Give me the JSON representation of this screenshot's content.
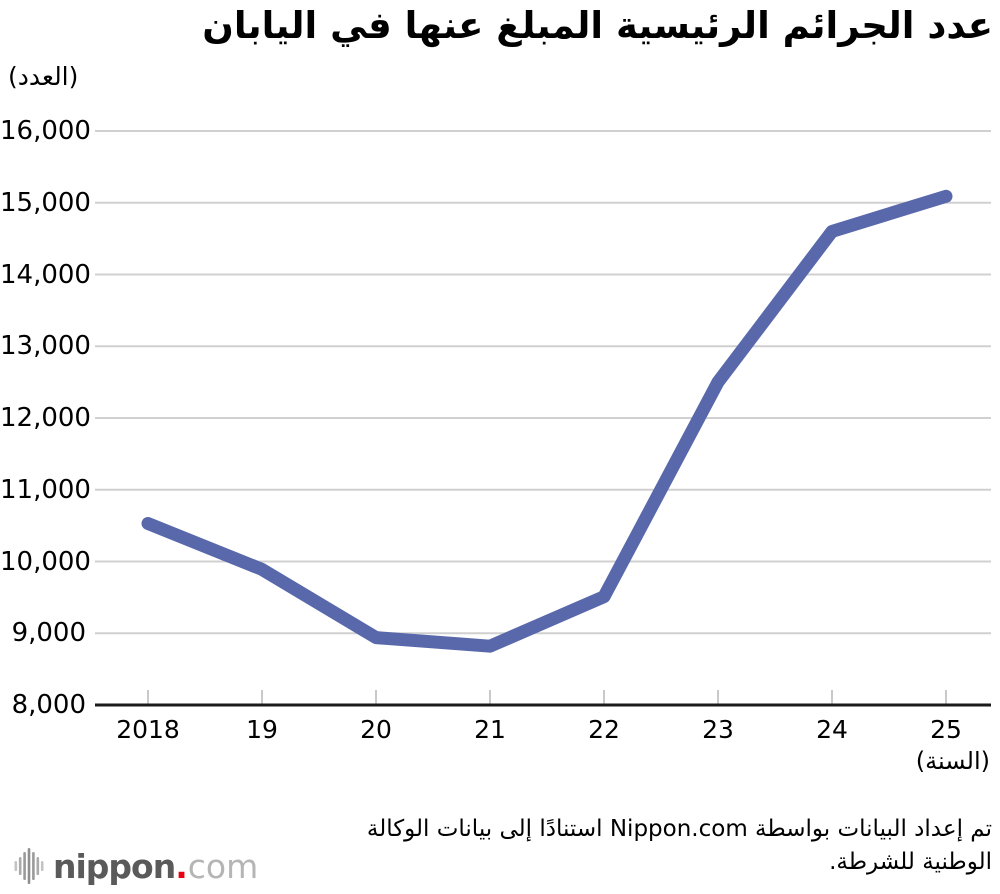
{
  "chart_data": {
    "type": "line",
    "title": "عدد الجرائم الرئيسية المبلغ عنها في اليابان",
    "ylabel": "(العدد)",
    "xlabel": "(السنة)",
    "categories": [
      "2018",
      "19",
      "20",
      "21",
      "22",
      "23",
      "24",
      "25"
    ],
    "series": [
      {
        "name": "reported-major-crimes",
        "values": [
          10530,
          9890,
          8940,
          8820,
          9510,
          12500,
          14600,
          15090
        ]
      }
    ],
    "ylim": [
      8000,
      16000
    ],
    "yticks": [
      {
        "value": 8000,
        "label": "8,000"
      },
      {
        "value": 9000,
        "label": "9,000"
      },
      {
        "value": 10000,
        "label": "10,000"
      },
      {
        "value": 11000,
        "label": "11,000"
      },
      {
        "value": 12000,
        "label": "12,000"
      },
      {
        "value": 13000,
        "label": "13,000"
      },
      {
        "value": 14000,
        "label": "14,000"
      },
      {
        "value": 15000,
        "label": "15,000"
      },
      {
        "value": 16000,
        "label": "16,000"
      }
    ],
    "grid": "horizontal",
    "legend": "none",
    "line_color": "#5868ab"
  },
  "footer": {
    "line1": "تم إعداد البيانات بواسطة Nippon.com استنادًا إلى بيانات الوكالة",
    "line2": "الوطنية للشرطة."
  },
  "logo": {
    "icon": "waveform-icon",
    "name": "nippon",
    "dot": ".",
    "tld": "com"
  },
  "colors": {
    "line": "#5868ab",
    "grid": "#d0d0d0",
    "tick": "#c9c9c9",
    "axis": "#1a1a1a",
    "text": "#000000",
    "logo_name": "#5a5a5a",
    "logo_dot": "#e60012",
    "logo_tld": "#b5b5b5"
  }
}
